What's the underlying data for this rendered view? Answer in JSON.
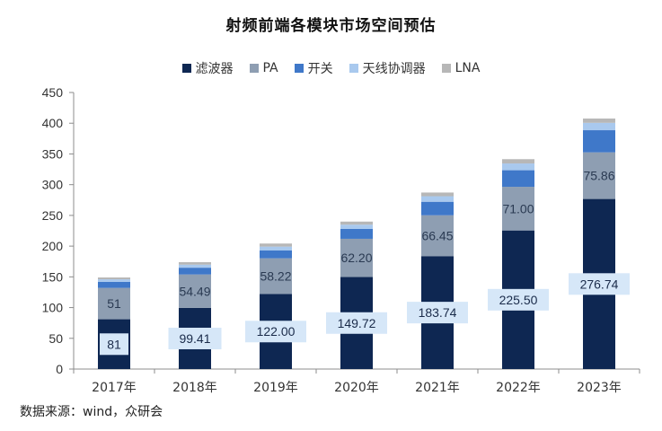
{
  "title": "射频前端各模块市场空间预估",
  "source_note": "数据来源：wind，众研会",
  "colors": {
    "filter": "#0e2752",
    "pa": "#8e9eb2",
    "switch": "#3f78c9",
    "antenna_tuner": "#a9c9ee",
    "lna": "#b7b7b7",
    "label_box": "#d6e7f8"
  },
  "chart_data": {
    "type": "bar",
    "stacked": true,
    "categories": [
      "2017年",
      "2018年",
      "2019年",
      "2020年",
      "2021年",
      "2022年",
      "2023年"
    ],
    "series": [
      {
        "name": "滤波器",
        "color_key": "filter",
        "values": [
          81,
          99.41,
          122.0,
          149.72,
          183.74,
          225.5,
          276.74
        ],
        "labels": [
          "81",
          "99.41",
          "122.00",
          "149.72",
          "183.74",
          "225.50",
          "276.74"
        ]
      },
      {
        "name": "PA",
        "color_key": "pa",
        "values": [
          51,
          54.49,
          58.22,
          62.2,
          66.45,
          71.0,
          75.86
        ],
        "labels": [
          "51",
          "54.49",
          "58.22",
          "62.20",
          "66.45",
          "71.00",
          "75.86"
        ]
      },
      {
        "name": "开关",
        "color_key": "switch",
        "values": [
          10,
          11,
          13,
          16,
          22,
          27,
          36
        ]
      },
      {
        "name": "天线协调器",
        "color_key": "antenna_tuner",
        "values": [
          4,
          5,
          6,
          7,
          9,
          11,
          12
        ]
      },
      {
        "name": "LNA",
        "color_key": "lna",
        "values": [
          3,
          4,
          5,
          5,
          6,
          7,
          7
        ]
      }
    ],
    "ylim": [
      0,
      450
    ],
    "yticks": [
      0,
      50,
      100,
      150,
      200,
      250,
      300,
      350,
      400,
      450
    ],
    "legend_position": "top-center",
    "grid": false
  }
}
